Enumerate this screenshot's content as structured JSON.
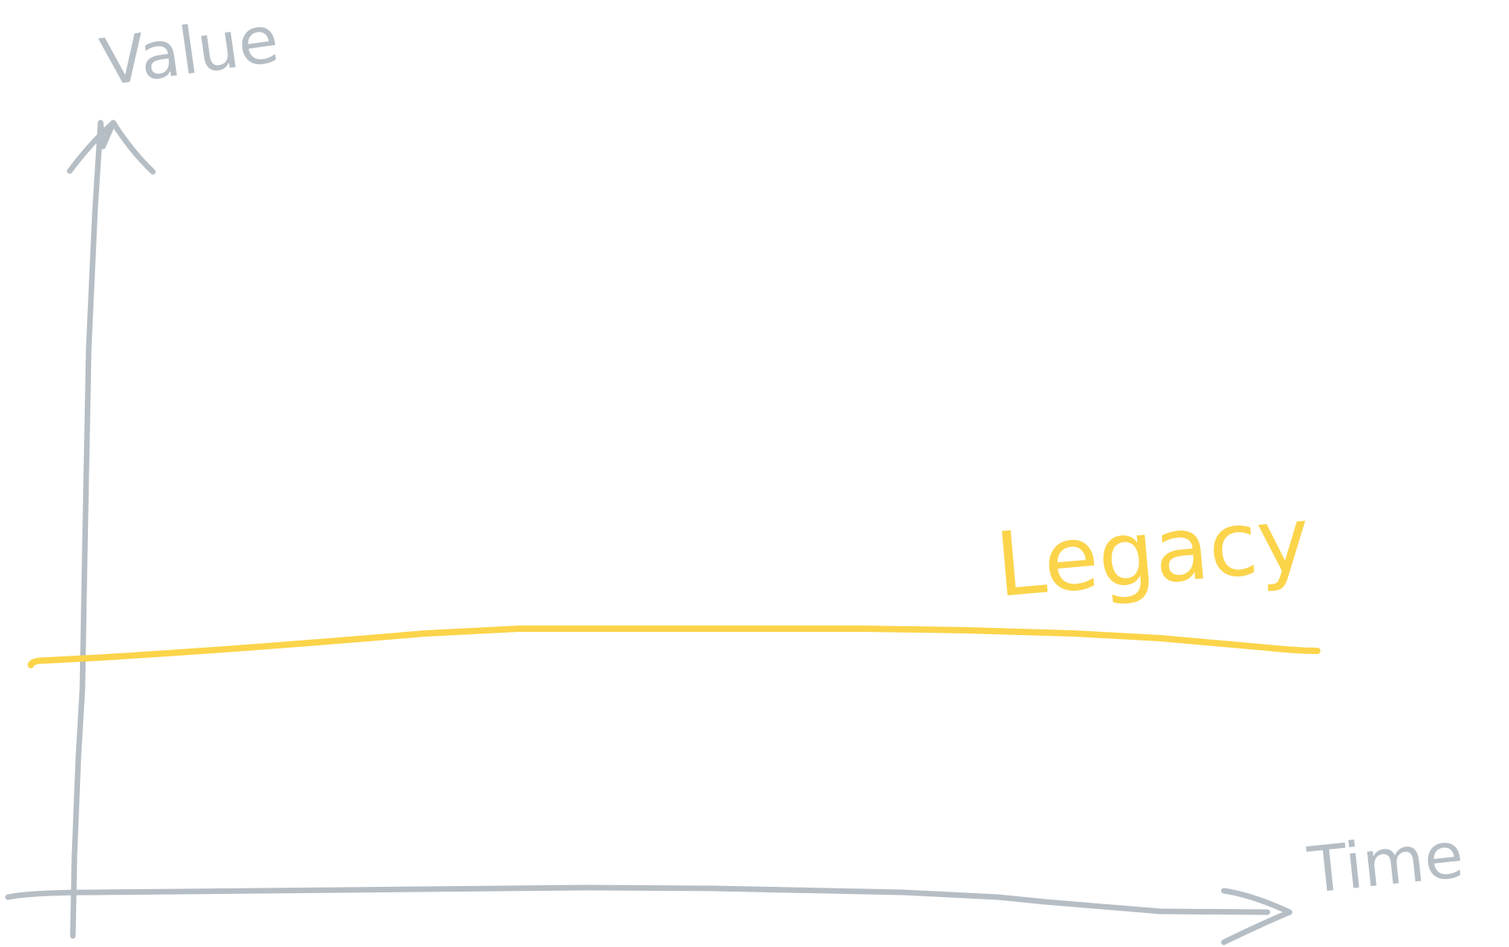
{
  "axes": {
    "y_label": "Value",
    "x_label": "Time"
  },
  "curve": {
    "label": "Legacy"
  }
}
